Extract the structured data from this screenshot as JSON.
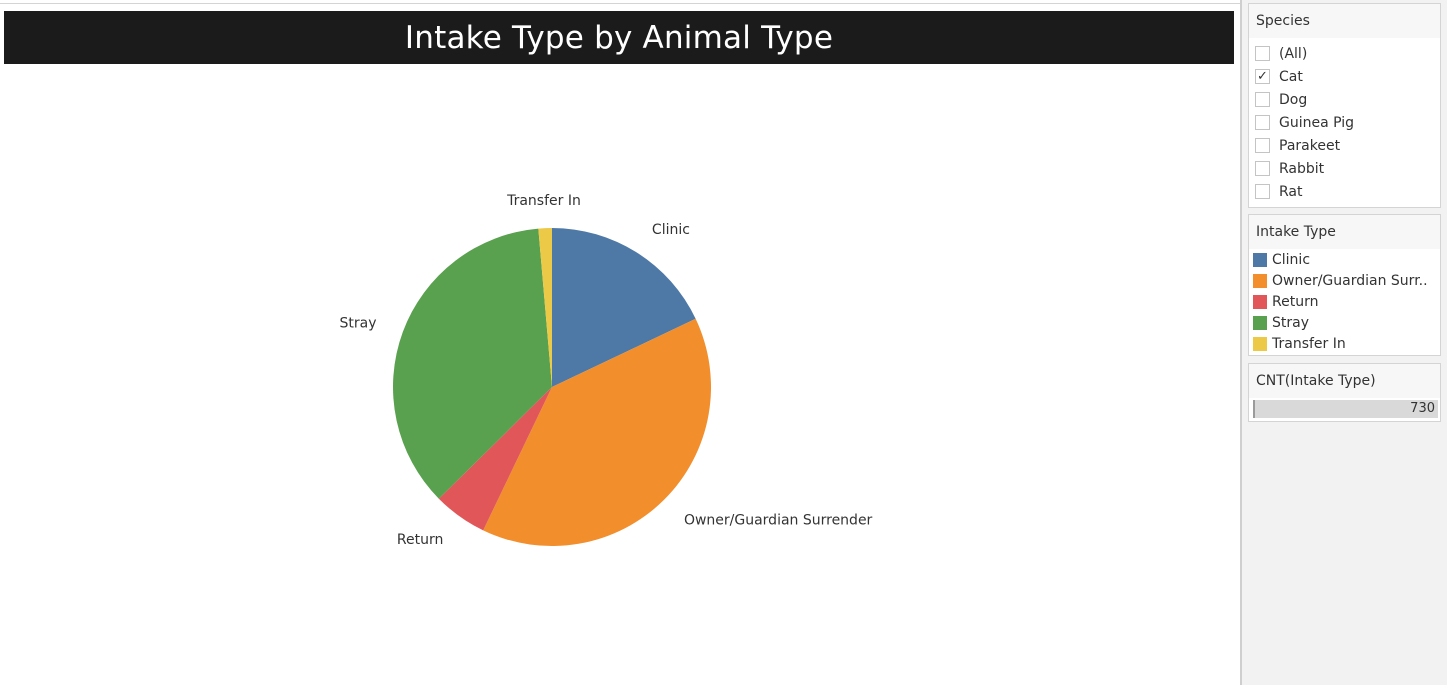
{
  "title": "Intake Type by Animal Type",
  "species_filter": {
    "title": "Species",
    "items": [
      {
        "label": "(All)",
        "checked": false
      },
      {
        "label": "Cat",
        "checked": true
      },
      {
        "label": "Dog",
        "checked": false
      },
      {
        "label": "Guinea Pig",
        "checked": false
      },
      {
        "label": "Parakeet",
        "checked": false
      },
      {
        "label": "Rabbit",
        "checked": false
      },
      {
        "label": "Rat",
        "checked": false
      }
    ]
  },
  "legend": {
    "title": "Intake Type",
    "items": [
      {
        "label": "Clinic",
        "color": "#4e79a7"
      },
      {
        "label": "Owner/Guardian Surr..",
        "color": "#f28e2b"
      },
      {
        "label": "Return",
        "color": "#e15759"
      },
      {
        "label": "Stray",
        "color": "#59a14f"
      },
      {
        "label": "Transfer In",
        "color": "#edc948"
      }
    ]
  },
  "count_filter": {
    "title": "CNT(Intake Type)",
    "value": "730"
  },
  "chart_data": {
    "type": "pie",
    "title": "Intake Type by Animal Type",
    "categories": [
      "Clinic",
      "Owner/Guardian Surrender",
      "Return",
      "Stray",
      "Transfer In"
    ],
    "values": [
      131,
      286,
      40,
      263,
      10
    ],
    "colors": [
      "#4e79a7",
      "#f28e2b",
      "#e15759",
      "#59a14f",
      "#edc948"
    ],
    "total": 730
  }
}
